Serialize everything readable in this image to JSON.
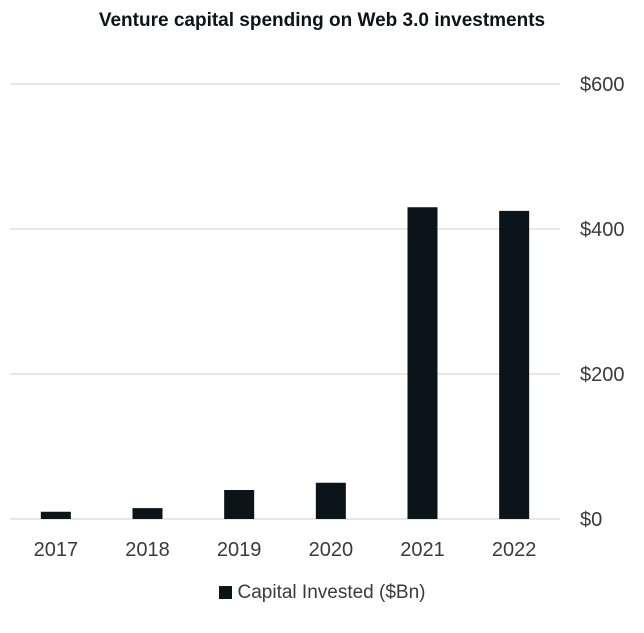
{
  "chart_data": {
    "type": "bar",
    "title": "Venture capital spending on Web 3.0 investments",
    "categories": [
      "2017",
      "2018",
      "2019",
      "2020",
      "2021",
      "2022"
    ],
    "series": [
      {
        "name": "Capital Invested ($Bn)",
        "values": [
          10,
          15,
          40,
          50,
          430,
          425
        ],
        "color": "#0b1419"
      }
    ],
    "ylim": [
      0,
      600
    ],
    "yticks": [
      0,
      200,
      400,
      600
    ],
    "ytick_labels": [
      "$0",
      "$200",
      "$400",
      "$600"
    ],
    "yaxis_side": "right",
    "grid": true,
    "legend_position": "bottom"
  }
}
